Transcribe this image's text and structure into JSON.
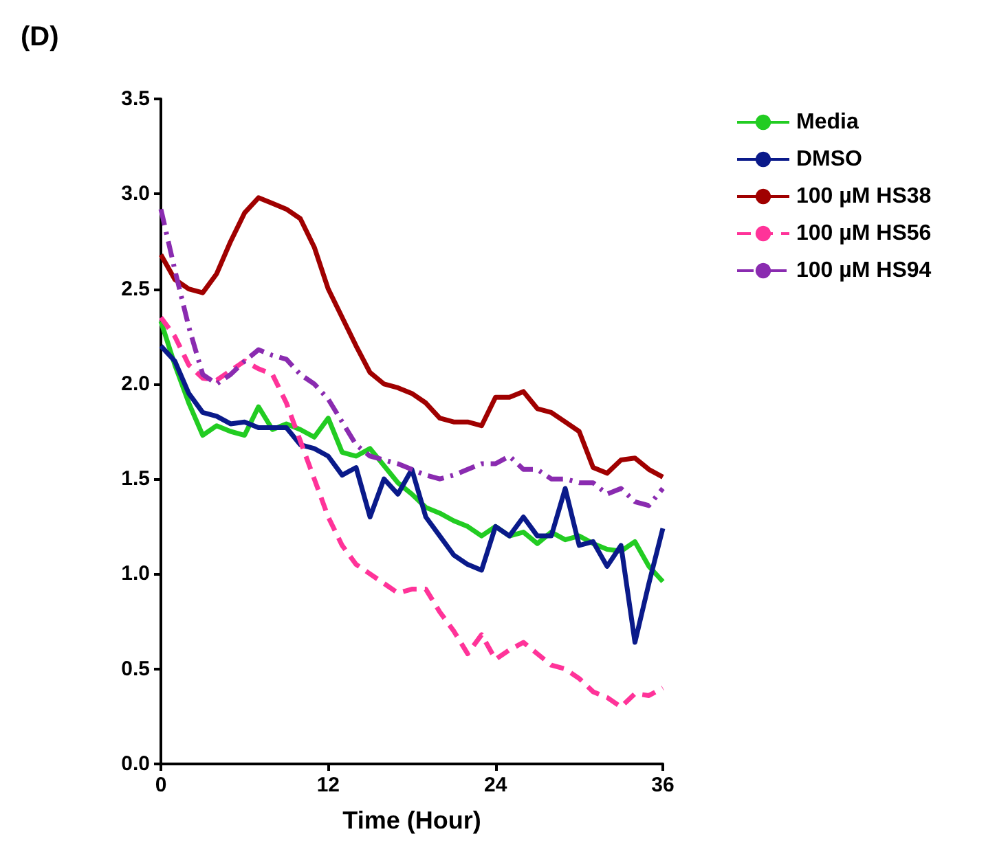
{
  "chart_data": {
    "type": "line",
    "title": "(D)",
    "xlabel": "Time (Hour)",
    "x": [
      0,
      1,
      2,
      3,
      4,
      5,
      6,
      7,
      8,
      9,
      10,
      11,
      12,
      13,
      14,
      15,
      16,
      17,
      18,
      19,
      20,
      21,
      22,
      23,
      24,
      25,
      26,
      27,
      28,
      29,
      30,
      31,
      32,
      33,
      34,
      35,
      36
    ],
    "xlim": [
      0,
      36
    ],
    "xticks": [
      0,
      12,
      24,
      36
    ],
    "ylim": [
      0,
      3.5
    ],
    "yticks": [
      {
        "value": 0,
        "label": "0.0"
      },
      0.5,
      {
        "value": 1,
        "label": "1.0"
      },
      1.5,
      {
        "value": 2,
        "label": "2.0"
      },
      2.5,
      {
        "value": 3,
        "label": "3.0"
      },
      3.5
    ],
    "grid": false,
    "legend": "top right",
    "marker": "none",
    "series": [
      {
        "name": "Media",
        "color": "#22cc22",
        "line_style": "solid",
        "values": [
          2.33,
          2.1,
          1.9,
          1.73,
          1.78,
          1.75,
          1.73,
          1.88,
          1.76,
          1.79,
          1.76,
          1.72,
          1.82,
          1.64,
          1.62,
          1.66,
          1.57,
          1.48,
          1.42,
          1.35,
          1.32,
          1.28,
          1.25,
          1.2,
          1.25,
          1.2,
          1.22,
          1.16,
          1.22,
          1.18,
          1.2,
          1.16,
          1.13,
          1.12,
          1.17,
          1.04,
          0.96
        ]
      },
      {
        "name": "DMSO",
        "color": "#0a1a8a",
        "line_style": "solid",
        "values": [
          2.2,
          2.12,
          1.95,
          1.85,
          1.83,
          1.79,
          1.8,
          1.77,
          1.77,
          1.77,
          1.68,
          1.66,
          1.62,
          1.52,
          1.56,
          1.3,
          1.5,
          1.42,
          1.55,
          1.3,
          1.2,
          1.1,
          1.05,
          1.02,
          1.25,
          1.2,
          1.3,
          1.2,
          1.2,
          1.45,
          1.15,
          1.17,
          1.04,
          1.15,
          0.64,
          0.95,
          1.24
        ]
      },
      {
        "name": "100 µM HS38",
        "color": "#a00000",
        "line_style": "solid",
        "values": [
          2.68,
          2.55,
          2.5,
          2.48,
          2.58,
          2.75,
          2.9,
          2.98,
          2.95,
          2.92,
          2.87,
          2.72,
          2.5,
          2.35,
          2.2,
          2.06,
          2.0,
          1.98,
          1.95,
          1.9,
          1.82,
          1.8,
          1.8,
          1.78,
          1.93,
          1.93,
          1.96,
          1.87,
          1.85,
          1.8,
          1.75,
          1.56,
          1.53,
          1.6,
          1.61,
          1.55,
          1.51
        ]
      },
      {
        "name": "100 µM HS56",
        "color": "#ff3399",
        "line_style": "dashed",
        "values": [
          2.35,
          2.25,
          2.1,
          2.03,
          2.02,
          2.07,
          2.12,
          2.08,
          2.05,
          1.9,
          1.7,
          1.5,
          1.3,
          1.15,
          1.05,
          1.0,
          0.95,
          0.9,
          0.92,
          0.92,
          0.8,
          0.7,
          0.58,
          0.68,
          0.55,
          0.6,
          0.64,
          0.58,
          0.52,
          0.5,
          0.45,
          0.38,
          0.35,
          0.3,
          0.37,
          0.36,
          0.4
        ]
      },
      {
        "name": "100 µM HS94",
        "color": "#8a2bb0",
        "line_style": "dashdot",
        "values": [
          2.92,
          2.6,
          2.3,
          2.05,
          2.0,
          2.05,
          2.12,
          2.18,
          2.15,
          2.13,
          2.05,
          2.0,
          1.92,
          1.8,
          1.68,
          1.62,
          1.6,
          1.58,
          1.55,
          1.52,
          1.5,
          1.52,
          1.55,
          1.58,
          1.58,
          1.62,
          1.55,
          1.55,
          1.5,
          1.5,
          1.48,
          1.48,
          1.42,
          1.45,
          1.38,
          1.36,
          1.45
        ]
      }
    ]
  }
}
